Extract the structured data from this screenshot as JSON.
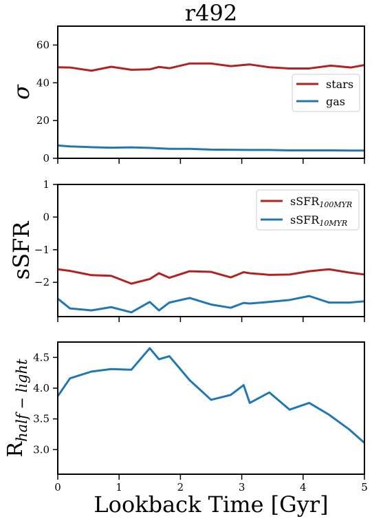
{
  "chart_data": [
    {
      "type": "line",
      "title": "r492",
      "ylabel": "σ",
      "xlabel": "",
      "xlim": [
        0,
        5
      ],
      "ylim": [
        0,
        70
      ],
      "yticks": [
        0,
        20,
        40,
        60
      ],
      "xticks": [
        0,
        1,
        2,
        3,
        4,
        5
      ],
      "show_x_tick_labels": false,
      "legend": "center-right",
      "grid": false,
      "series": [
        {
          "name": "stars",
          "color": "#b22222",
          "x": [
            0,
            0.2,
            0.55,
            0.87,
            1.2,
            1.5,
            1.65,
            1.82,
            2.15,
            2.5,
            2.82,
            3.13,
            3.45,
            3.78,
            4.1,
            4.45,
            4.78,
            5.0
          ],
          "y": [
            48.2,
            48.1,
            46.4,
            48.5,
            46.9,
            47.1,
            48.4,
            47.7,
            50.2,
            50.2,
            48.8,
            49.7,
            48.2,
            47.6,
            47.6,
            49.1,
            48.1,
            49.4
          ]
        },
        {
          "name": "gas",
          "color": "#1f77b4",
          "x": [
            0,
            0.2,
            0.55,
            0.87,
            1.2,
            1.5,
            1.82,
            2.15,
            2.5,
            2.82,
            3.13,
            3.45,
            3.78,
            4.1,
            4.45,
            4.78,
            5.0
          ],
          "y": [
            6.8,
            6.3,
            5.9,
            5.6,
            5.8,
            5.5,
            5.0,
            5.0,
            4.6,
            4.5,
            4.4,
            4.4,
            4.2,
            4.2,
            4.2,
            4.1,
            4.1
          ]
        }
      ]
    },
    {
      "type": "line",
      "title": "",
      "ylabel": "sSFR",
      "xlabel": "",
      "xlim": [
        0,
        5
      ],
      "ylim": [
        -3.05,
        1
      ],
      "yticks": [
        -2,
        -1,
        0,
        1
      ],
      "ytick_labels": [
        "−2",
        "−1",
        "0",
        "1"
      ],
      "xticks": [
        0,
        1,
        2,
        3,
        4,
        5
      ],
      "show_x_tick_labels": false,
      "legend": "top-right",
      "grid": false,
      "series": [
        {
          "name": "sSFR",
          "name_sub": "100MYR",
          "color": "#b22222",
          "x": [
            0,
            0.2,
            0.55,
            0.87,
            1.2,
            1.5,
            1.65,
            1.82,
            2.15,
            2.5,
            2.82,
            3.03,
            3.13,
            3.45,
            3.78,
            4.1,
            4.42,
            4.75,
            5.0
          ],
          "y": [
            -1.6,
            -1.65,
            -1.78,
            -1.8,
            -2.04,
            -1.9,
            -1.72,
            -1.86,
            -1.66,
            -1.68,
            -1.85,
            -1.69,
            -1.72,
            -1.77,
            -1.76,
            -1.66,
            -1.6,
            -1.7,
            -1.76
          ]
        },
        {
          "name": "sSFR",
          "name_sub": "10MYR",
          "color": "#1f77b4",
          "x": [
            0,
            0.2,
            0.55,
            0.87,
            1.2,
            1.5,
            1.65,
            1.82,
            2.15,
            2.5,
            2.82,
            3.03,
            3.13,
            3.45,
            3.78,
            4.1,
            4.42,
            4.75,
            5.0
          ],
          "y": [
            -2.5,
            -2.8,
            -2.86,
            -2.76,
            -2.92,
            -2.6,
            -2.86,
            -2.62,
            -2.48,
            -2.68,
            -2.78,
            -2.63,
            -2.65,
            -2.6,
            -2.54,
            -2.42,
            -2.62,
            -2.62,
            -2.58
          ]
        }
      ]
    },
    {
      "type": "line",
      "title": "",
      "ylabel": "R",
      "ylabel_sub": "half − light",
      "xlabel": "Lookback Time [Gyr]",
      "xlim": [
        0,
        5
      ],
      "ylim": [
        2.6,
        4.75
      ],
      "yticks": [
        3.0,
        3.5,
        4.0,
        4.5
      ],
      "ytick_labels": [
        "3.0",
        "3.5",
        "4.0",
        "4.5"
      ],
      "xticks": [
        0,
        1,
        2,
        3,
        4,
        5
      ],
      "xtick_labels": [
        "0",
        "1",
        "2",
        "3",
        "4",
        "5"
      ],
      "show_x_tick_labels": true,
      "grid": false,
      "series": [
        {
          "name": "",
          "color": "#1f77b4",
          "x": [
            0,
            0.2,
            0.55,
            0.87,
            1.2,
            1.5,
            1.65,
            1.82,
            2.15,
            2.5,
            2.82,
            3.03,
            3.13,
            3.45,
            3.78,
            4.1,
            4.42,
            4.75,
            5.0
          ],
          "y": [
            3.87,
            4.16,
            4.27,
            4.31,
            4.3,
            4.65,
            4.47,
            4.52,
            4.13,
            3.81,
            3.89,
            4.05,
            3.76,
            3.93,
            3.65,
            3.76,
            3.57,
            3.33,
            3.11
          ]
        }
      ]
    }
  ]
}
